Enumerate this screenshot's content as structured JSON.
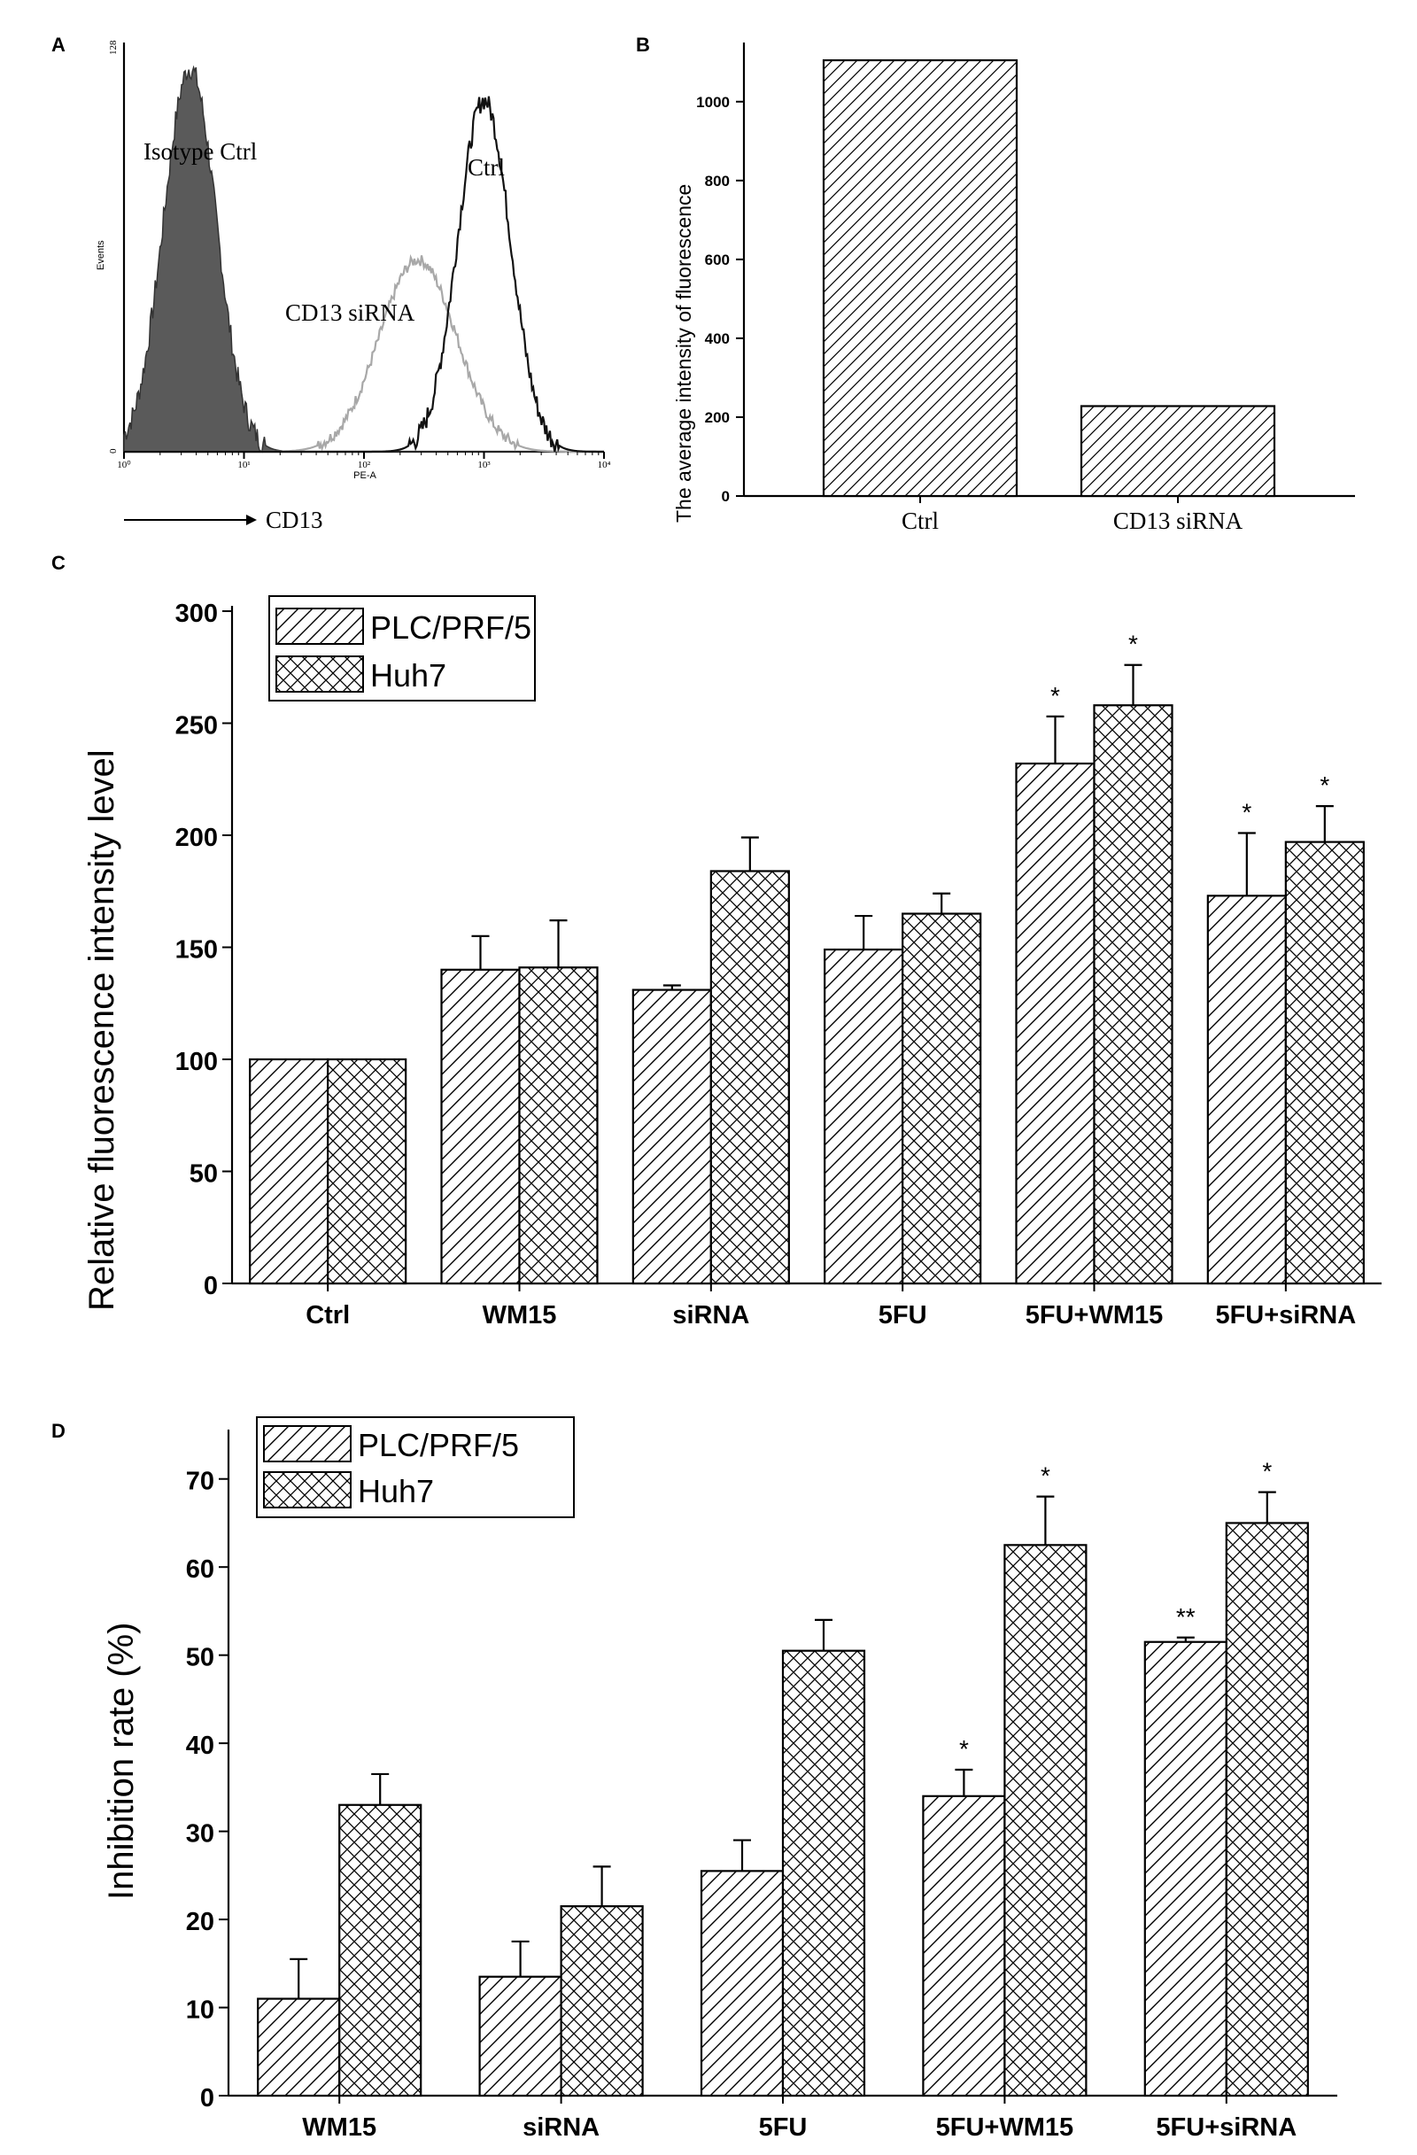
{
  "panels": {
    "A": "A",
    "B": "B",
    "C": "C",
    "D": "D"
  },
  "chart_data": [
    {
      "panel": "A",
      "type": "histogram",
      "title": "",
      "xlabel": "PE-A",
      "ylabel": "Events",
      "x_scale": "log",
      "x_ticks": [
        "10⁰",
        "10¹",
        "10²",
        "10³",
        "10⁴"
      ],
      "y_ticks": [
        "0",
        "128"
      ],
      "ylim": [
        0,
        128
      ],
      "series": [
        {
          "name": "Isotype Ctrl",
          "style": "filled",
          "peak_log10": 0.55,
          "width": 0.22,
          "peak": 120
        },
        {
          "name": "CD13 siRNA",
          "style": "light-outline",
          "peak_log10": 2.45,
          "width": 0.32,
          "peak": 60
        },
        {
          "name": "Ctrl",
          "style": "dark-outline",
          "peak_log10": 3.0,
          "width": 0.22,
          "peak": 110
        }
      ],
      "arrow_label": "CD13"
    },
    {
      "panel": "B",
      "type": "bar",
      "categories": [
        "Ctrl",
        "CD13 siRNA"
      ],
      "values": [
        1105,
        228
      ],
      "ylabel": "The average intensity of fluorescence",
      "xlabel": "",
      "ylim": [
        0,
        1150
      ],
      "y_ticks": [
        0,
        200,
        400,
        600,
        800,
        1000
      ]
    },
    {
      "panel": "C",
      "type": "bar",
      "categories": [
        "Ctrl",
        "WM15",
        "siRNA",
        "5FU",
        "5FU+WM15",
        "5FU+siRNA"
      ],
      "series": [
        {
          "name": "PLC/PRF/5",
          "pattern": "diagonal",
          "values": [
            100,
            140,
            131,
            149,
            232,
            173
          ],
          "errors": [
            0,
            15,
            2,
            15,
            21,
            28
          ],
          "sig": [
            "",
            "",
            "",
            "",
            "*",
            "*"
          ]
        },
        {
          "name": "Huh7",
          "pattern": "crosshatch",
          "values": [
            100,
            141,
            184,
            165,
            258,
            197
          ],
          "errors": [
            0,
            21,
            15,
            9,
            18,
            16
          ],
          "sig": [
            "",
            "",
            "",
            "",
            "*",
            "*"
          ]
        }
      ],
      "ylabel": "Relative fluorescence intensity level",
      "xlabel": "",
      "ylim": [
        0,
        300
      ],
      "y_ticks": [
        0,
        50,
        100,
        150,
        200,
        250,
        300
      ],
      "legend": "top-left"
    },
    {
      "panel": "D",
      "type": "bar",
      "categories": [
        "WM15",
        "siRNA",
        "5FU",
        "5FU+WM15",
        "5FU+siRNA"
      ],
      "series": [
        {
          "name": "PLC/PRF/5",
          "pattern": "diagonal",
          "values": [
            11,
            13.5,
            25.5,
            34,
            51.5
          ],
          "errors": [
            4.5,
            4,
            3.5,
            3,
            0.5
          ],
          "sig": [
            "",
            "",
            "",
            "*",
            "**"
          ]
        },
        {
          "name": "Huh7",
          "pattern": "crosshatch",
          "values": [
            33,
            21.5,
            50.5,
            62.5,
            65
          ],
          "errors": [
            3.5,
            4.5,
            3.5,
            5.5,
            3.5
          ],
          "sig": [
            "",
            "",
            "",
            "*",
            "*"
          ]
        }
      ],
      "ylabel": "Inhibition rate (%)",
      "xlabel": "",
      "ylim": [
        0,
        75
      ],
      "y_ticks": [
        0,
        10,
        20,
        30,
        40,
        50,
        60,
        70
      ],
      "legend": "top-left"
    }
  ]
}
